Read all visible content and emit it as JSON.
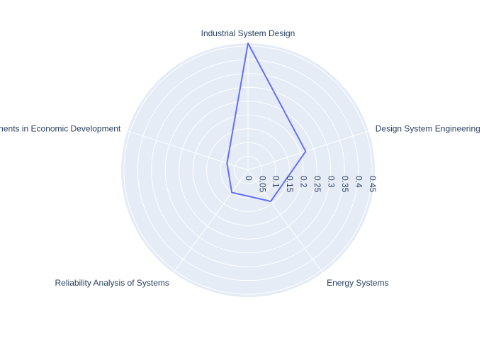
{
  "chart_data": {
    "type": "radar",
    "title": "",
    "categories": [
      "Industrial System Design",
      "Design System Engineering",
      "Energy Systems",
      "Reliability Analysis of Systems",
      "Components in Economic Development"
    ],
    "series": [
      {
        "values": [
          0.46,
          0.22,
          0.14,
          0.1,
          0.08
        ]
      }
    ],
    "radial_range": [
      0,
      0.46
    ],
    "radial_ticks": [
      "0",
      "0.05",
      "0.1",
      "0.15",
      "0.2",
      "0.25",
      "0.3",
      "0.35",
      "0.4",
      "0.45"
    ],
    "grid": true,
    "legend": "none",
    "colors": {
      "polar_bg": "#e5ecf6",
      "grid": "#ffffff",
      "series": "#636efa",
      "text": "#2a3f5f"
    }
  }
}
